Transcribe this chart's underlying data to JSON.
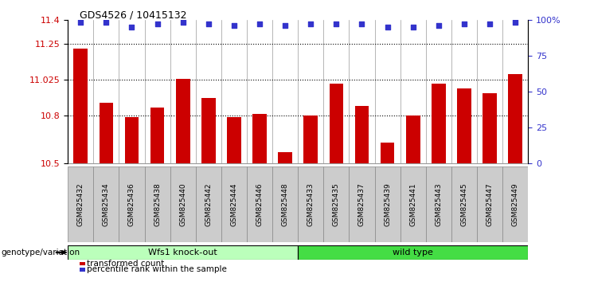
{
  "title": "GDS4526 / 10415132",
  "samples": [
    "GSM825432",
    "GSM825434",
    "GSM825436",
    "GSM825438",
    "GSM825440",
    "GSM825442",
    "GSM825444",
    "GSM825446",
    "GSM825448",
    "GSM825433",
    "GSM825435",
    "GSM825437",
    "GSM825439",
    "GSM825441",
    "GSM825443",
    "GSM825445",
    "GSM825447",
    "GSM825449"
  ],
  "bar_values": [
    11.22,
    10.88,
    10.79,
    10.85,
    11.03,
    10.91,
    10.79,
    10.81,
    10.57,
    10.8,
    11.0,
    10.86,
    10.63,
    10.8,
    11.0,
    10.97,
    10.94,
    11.06
  ],
  "percentile_values": [
    98,
    98,
    95,
    97,
    98,
    97,
    96,
    97,
    96,
    97,
    97,
    97,
    95,
    95,
    96,
    97,
    97,
    98
  ],
  "bar_color": "#cc0000",
  "dot_color": "#3333cc",
  "ylim_left": [
    10.5,
    11.4
  ],
  "ylim_right": [
    0,
    100
  ],
  "yticks_left": [
    10.5,
    10.8,
    11.025,
    11.25,
    11.4
  ],
  "ytick_labels_left": [
    "10.5",
    "10.8",
    "11.025",
    "11.25",
    "11.4"
  ],
  "yticks_right": [
    0,
    25,
    50,
    75,
    100
  ],
  "ytick_labels_right": [
    "0",
    "25",
    "50",
    "75",
    "100%"
  ],
  "hlines": [
    10.8,
    11.025,
    11.25
  ],
  "group1_label": "Wfs1 knock-out",
  "group2_label": "wild type",
  "group1_color": "#bbffbb",
  "group2_color": "#44dd44",
  "group1_count": 9,
  "group2_count": 9,
  "genotype_label": "genotype/variation",
  "legend_bar_label": "transformed count",
  "legend_dot_label": "percentile rank within the sample",
  "bar_width": 0.55,
  "bg_color": "#ffffff",
  "tick_bg_color": "#cccccc",
  "cell_line_color": "#999999"
}
